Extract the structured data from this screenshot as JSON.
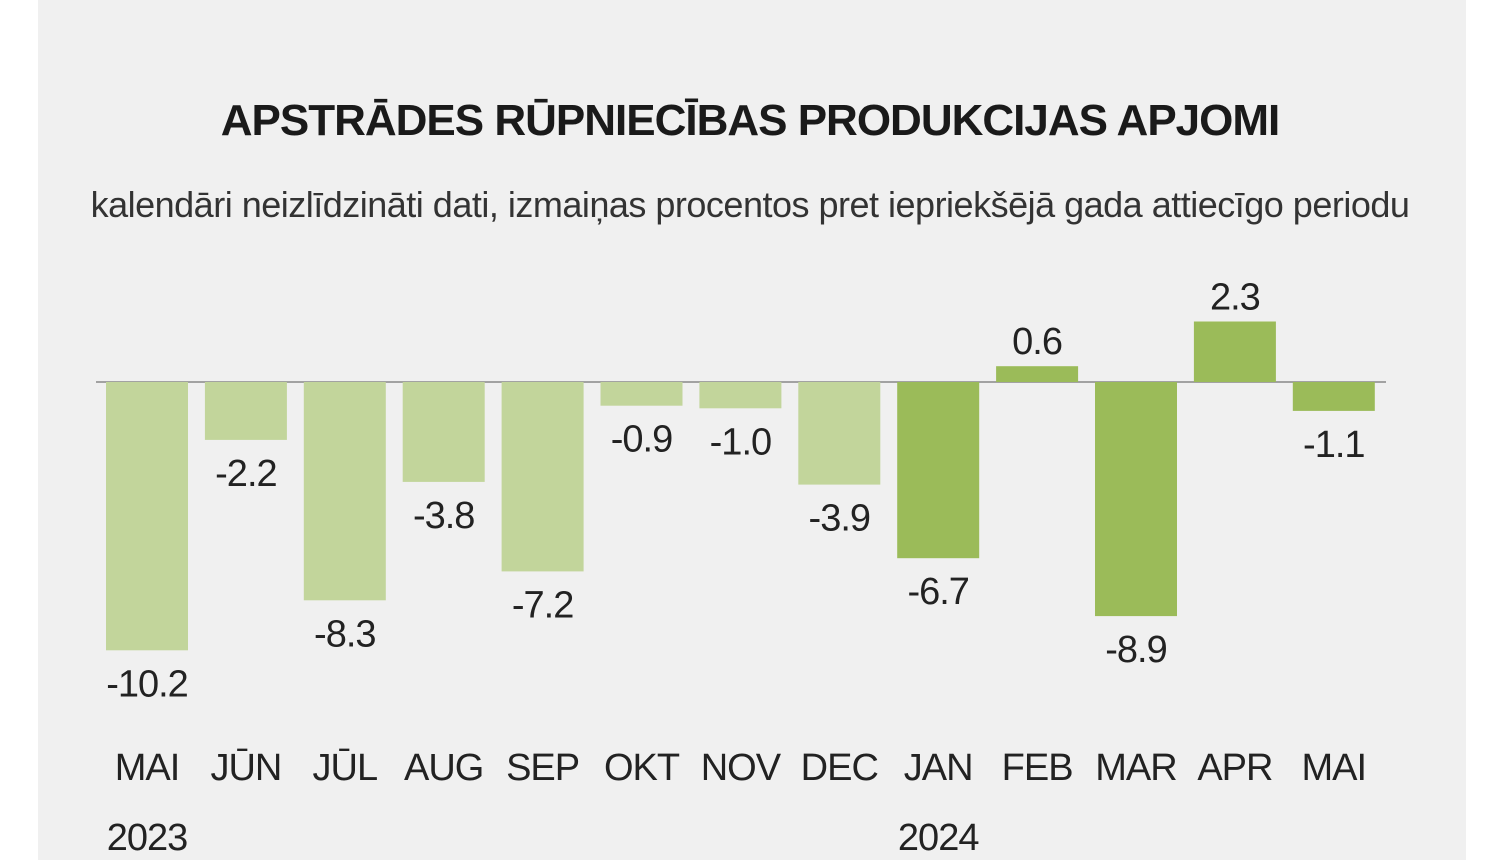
{
  "chart_data": {
    "type": "bar",
    "title": "APSTRĀDES RŪPNIECĪBAS PRODUKCIJAS APJOMI",
    "subtitle": "kalendāri neizlīdzināti dati, izmaiņas procentos pret iepriekšējā gada attiecīgo periodu",
    "categories": [
      "MAI",
      "JŪN",
      "JŪL",
      "AUG",
      "SEP",
      "OKT",
      "NOV",
      "DEC",
      "JAN",
      "FEB",
      "MAR",
      "APR",
      "MAI"
    ],
    "values": [
      -10.2,
      -2.2,
      -8.3,
      -3.8,
      -7.2,
      -0.9,
      -1.0,
      -3.9,
      -6.7,
      0.6,
      -8.9,
      2.3,
      -1.1
    ],
    "value_labels": [
      "-10.2",
      "-2.2",
      "-8.3",
      "-3.8",
      "-7.2",
      "-0.9",
      "-1.0",
      "-3.9",
      "-6.7",
      "0.6",
      "-8.9",
      "2.3",
      "-1.1"
    ],
    "years": [
      {
        "label": "2023",
        "category_index": 0
      },
      {
        "label": "2024",
        "category_index": 8
      }
    ],
    "series_year": [
      2023,
      2023,
      2023,
      2023,
      2023,
      2023,
      2023,
      2023,
      2024,
      2024,
      2024,
      2024,
      2024
    ],
    "colors": {
      "2023": "#c2d59b",
      "2024": "#9bbb59",
      "baseline": "#888888",
      "background": "#f0f0f0"
    },
    "xlabel": "",
    "ylabel": "",
    "ylim": [
      -10.2,
      2.3
    ],
    "grid": false
  }
}
